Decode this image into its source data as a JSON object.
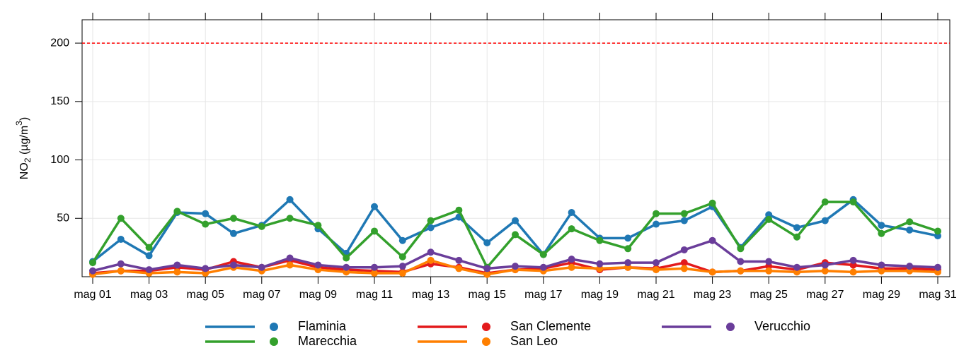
{
  "chart_data": {
    "type": "line",
    "ylabel": [
      "NO",
      "2",
      " (µg/m",
      "3",
      ")"
    ],
    "categories": [
      "mag 01",
      null,
      "mag 03",
      null,
      "mag 05",
      null,
      "mag 07",
      null,
      "mag 09",
      null,
      "mag 11",
      null,
      "mag 13",
      null,
      "mag 15",
      null,
      "mag 17",
      null,
      "mag 19",
      null,
      "mag 21",
      null,
      "mag 23",
      null,
      "mag 25",
      null,
      "mag 27",
      null,
      "mag 29",
      null,
      "mag 31"
    ],
    "ylim": [
      0,
      220
    ],
    "yticks": [
      50,
      100,
      150,
      200
    ],
    "grid": true,
    "threshold": 200,
    "threshold_color": "#ff0000",
    "series": [
      {
        "name": "Flaminia",
        "color": "#1f78b4",
        "values": [
          13,
          32,
          18,
          55,
          54,
          37,
          44,
          66,
          41,
          20,
          60,
          31,
          42,
          51,
          29,
          48,
          19,
          55,
          33,
          33,
          45,
          48,
          60,
          25,
          53,
          42,
          48,
          66,
          44,
          40,
          35
        ]
      },
      {
        "name": "Marecchia",
        "color": "#33a02c",
        "values": [
          12,
          50,
          25,
          56,
          45,
          50,
          43,
          50,
          44,
          16,
          39,
          17,
          48,
          57,
          8,
          36,
          19,
          41,
          31,
          24,
          54,
          54,
          63,
          24,
          49,
          34,
          64,
          64,
          37,
          47,
          39
        ]
      },
      {
        "name": "San Clemente",
        "color": "#e31a1c",
        "values": [
          3,
          5,
          5,
          8,
          6,
          13,
          8,
          14,
          8,
          6,
          5,
          4,
          11,
          8,
          3,
          6,
          7,
          12,
          6,
          8,
          7,
          12,
          4,
          5,
          9,
          6,
          12,
          10,
          7,
          7,
          6
        ]
      },
      {
        "name": "San Leo",
        "color": "#ff7f00",
        "values": [
          2,
          5,
          3,
          4,
          3,
          8,
          5,
          10,
          6,
          4,
          3,
          3,
          14,
          7,
          2,
          6,
          5,
          8,
          7,
          8,
          6,
          7,
          4,
          5,
          5,
          4,
          5,
          4,
          5,
          5,
          4
        ]
      },
      {
        "name": "Verucchio",
        "color": "#6a3d9a",
        "values": [
          5,
          11,
          6,
          10,
          7,
          10,
          8,
          16,
          10,
          8,
          8,
          9,
          21,
          14,
          7,
          9,
          8,
          15,
          11,
          12,
          12,
          23,
          31,
          13,
          13,
          8,
          10,
          14,
          10,
          9,
          8
        ]
      }
    ]
  }
}
